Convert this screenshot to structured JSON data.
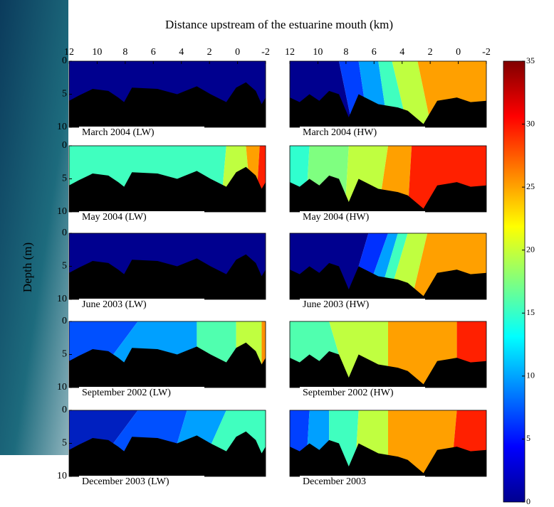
{
  "chart_data": {
    "type": "contour",
    "title": "Distance upstream of the estuarine mouth (km)",
    "y_label": "Depth (m)",
    "xlim": [
      12,
      -2
    ],
    "xticks": [
      12,
      10,
      8,
      6,
      4,
      2,
      0,
      -2
    ],
    "ylim": [
      0,
      10
    ],
    "yticks": [
      0,
      5,
      10
    ],
    "colorbar": {
      "lim": [
        0,
        35
      ],
      "ticks": [
        0,
        5,
        10,
        15,
        20,
        25,
        30,
        35
      ]
    },
    "panels": [
      "March 2004 (LW)",
      "March 2004 (HW)",
      "May 2004 (LW)",
      "May 2004 (HW)",
      "June 2003 (LW)",
      "June 2003 (HW)",
      "September 2002 (LW)",
      "September 2002 (HW)",
      "December 2003 (LW)",
      "December 2003"
    ]
  }
}
